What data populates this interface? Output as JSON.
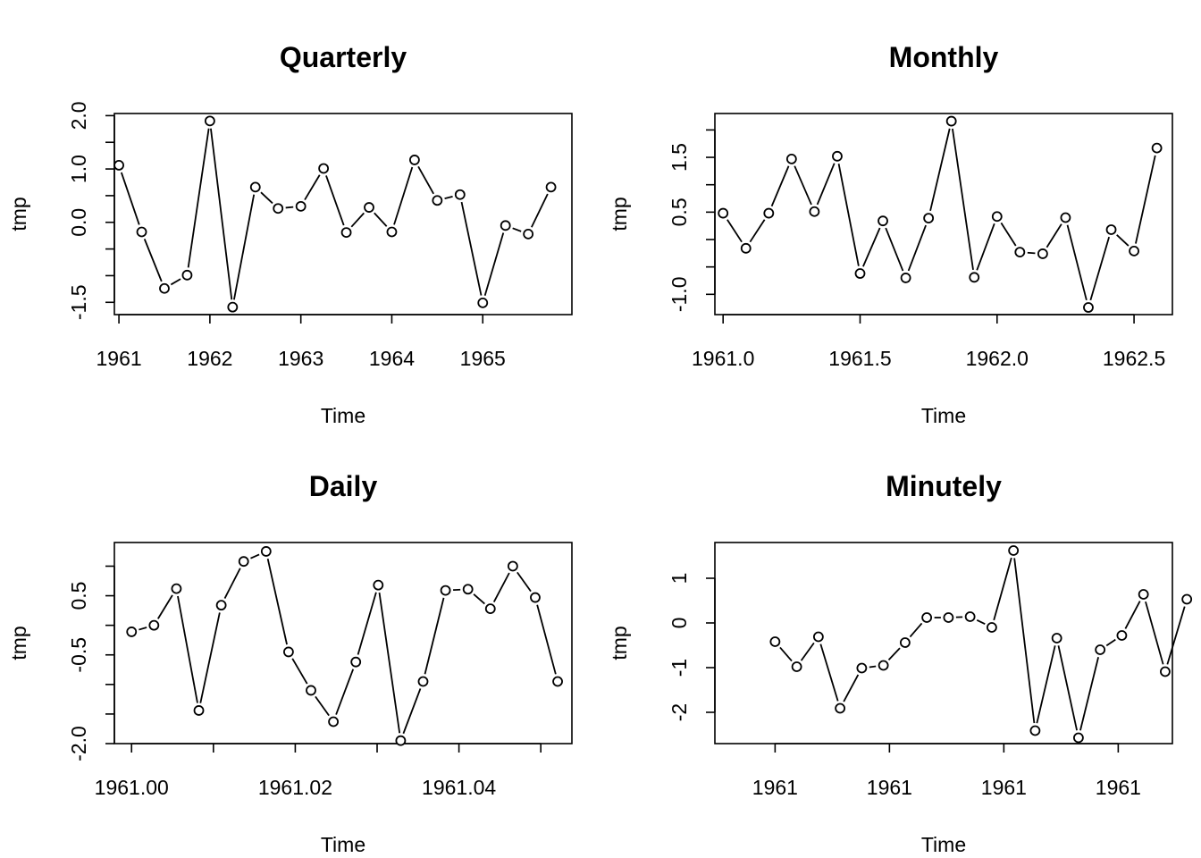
{
  "chart_data": [
    {
      "type": "line",
      "title": "Quarterly",
      "xlabel": "Time",
      "ylabel": "tmp",
      "xlim": [
        1960.95,
        1965.98
      ],
      "ylim": [
        -1.73,
        2.04
      ],
      "x_ticks": [
        1961,
        1962,
        1963,
        1964,
        1965
      ],
      "x_tick_labels": [
        "1961",
        "1962",
        "1963",
        "1964",
        "1965"
      ],
      "y_ticks": [
        -1.5,
        -1.0,
        -0.5,
        0.0,
        0.5,
        1.0,
        1.5,
        2.0
      ],
      "y_tick_labels": [
        "-1.5",
        "",
        "",
        "0.0",
        "",
        "1.0",
        "",
        "2.0"
      ],
      "x": [
        1961.0,
        1961.25,
        1961.5,
        1961.75,
        1962.0,
        1962.25,
        1962.5,
        1962.75,
        1963.0,
        1963.25,
        1963.5,
        1963.75,
        1964.0,
        1964.25,
        1964.5,
        1964.75,
        1965.0,
        1965.25,
        1965.5,
        1965.75
      ],
      "values": [
        1.07,
        -0.18,
        -1.24,
        -0.99,
        1.9,
        -1.59,
        0.66,
        0.26,
        0.3,
        1.01,
        -0.19,
        0.28,
        -0.18,
        1.17,
        0.41,
        0.52,
        -1.51,
        -0.06,
        -0.22,
        0.66
      ]
    },
    {
      "type": "line",
      "title": "Monthly",
      "xlabel": "Time",
      "ylabel": "tmp",
      "xlim": [
        1960.97,
        1962.64
      ],
      "ylim": [
        -1.37,
        2.3
      ],
      "x_ticks": [
        1961.0,
        1961.5,
        1962.0,
        1962.5
      ],
      "x_tick_labels": [
        "1961.0",
        "1961.5",
        "1962.0",
        "1962.5"
      ],
      "y_ticks": [
        -1.0,
        -0.5,
        0.0,
        0.5,
        1.0,
        1.5,
        2.0
      ],
      "y_tick_labels": [
        "-1.0",
        "",
        "",
        "0.5",
        "",
        "1.5",
        ""
      ],
      "x": [
        1961.0,
        1961.0833,
        1961.1667,
        1961.25,
        1961.3333,
        1961.4167,
        1961.5,
        1961.5833,
        1961.6667,
        1961.75,
        1961.8333,
        1961.9167,
        1962.0,
        1962.0833,
        1962.1667,
        1962.25,
        1962.3333,
        1962.4167,
        1962.5,
        1962.5833
      ],
      "values": [
        0.48,
        -0.16,
        0.48,
        1.47,
        0.51,
        1.52,
        -0.62,
        0.34,
        -0.7,
        0.39,
        2.16,
        -0.69,
        0.42,
        -0.23,
        -0.26,
        0.4,
        -1.24,
        0.18,
        -0.21,
        1.67
      ]
    },
    {
      "type": "line",
      "title": "Daily",
      "xlabel": "Time",
      "ylabel": "tmp",
      "xlim": [
        1960.9979,
        1961.0538
      ],
      "ylim": [
        -2.0,
        1.4
      ],
      "x_ticks": [
        1961.0,
        1961.01,
        1961.02,
        1961.03,
        1961.04,
        1961.05
      ],
      "x_tick_labels": [
        "1961.00",
        "",
        "1961.02",
        "",
        "1961.04",
        ""
      ],
      "y_ticks": [
        -2.0,
        -1.5,
        -1.0,
        -0.5,
        0.0,
        0.5,
        1.0
      ],
      "y_tick_labels": [
        "-2.0",
        "",
        "",
        "-0.5",
        "",
        "0.5",
        ""
      ],
      "x": [
        1961.0,
        1961.00274,
        1961.00548,
        1961.00822,
        1961.01096,
        1961.0137,
        1961.01644,
        1961.01918,
        1961.02192,
        1961.02466,
        1961.0274,
        1961.03014,
        1961.03288,
        1961.03562,
        1961.03836,
        1961.0411,
        1961.04384,
        1961.04658,
        1961.04932,
        1961.05206
      ],
      "values": [
        -0.11,
        0.0,
        0.62,
        -1.44,
        0.34,
        1.08,
        1.25,
        -0.45,
        -1.1,
        -1.63,
        -0.62,
        0.68,
        -1.95,
        -0.95,
        0.59,
        0.61,
        0.28,
        1.0,
        0.47,
        -0.95
      ]
    },
    {
      "type": "line",
      "title": "Minutely",
      "xlabel": "Time",
      "ylabel": "tmp",
      "xlim": [
        1960.9975,
        1961.0165
      ],
      "ylim": [
        -2.7,
        1.8
      ],
      "x_ticks": [
        1961.0,
        1961.00475,
        1961.0095,
        1961.01425
      ],
      "x_tick_labels": [
        "1961",
        "1961",
        "1961",
        "1961"
      ],
      "y_ticks": [
        -2,
        -1,
        0,
        1
      ],
      "y_tick_labels": [
        "-2",
        "-1",
        "0",
        "1"
      ],
      "x": [
        1961.0,
        1961.0009,
        1961.0018,
        1961.0027,
        1961.0036,
        1961.0045,
        1961.0054,
        1961.0063,
        1961.0072,
        1961.0081,
        1961.009,
        1961.0099,
        1961.0108,
        1961.0117,
        1961.0126,
        1961.0135,
        1961.0144,
        1961.0153,
        1961.0162,
        1961.0171
      ],
      "values": [
        -0.42,
        -0.98,
        -0.31,
        -1.91,
        -1.01,
        -0.95,
        -0.44,
        0.12,
        0.12,
        0.14,
        -0.1,
        1.62,
        -2.41,
        -0.34,
        -2.57,
        -0.6,
        -0.28,
        0.64,
        -1.09,
        0.53
      ]
    }
  ]
}
